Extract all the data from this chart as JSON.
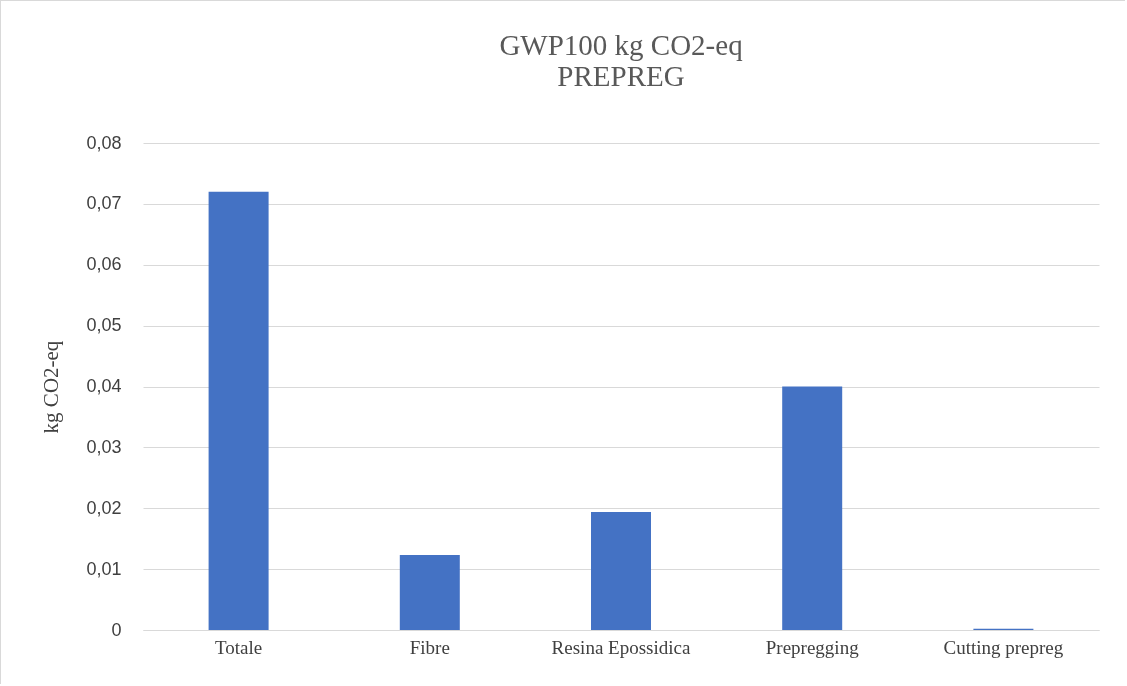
{
  "chart_data": {
    "type": "bar",
    "title": "GWP100 kg CO2-eq",
    "subtitle": "PREPREG",
    "ylabel": "kg CO2-eq",
    "categories": [
      "Totale",
      "Fibre",
      "Resina Epossidica",
      "Prepregging",
      "Cutting prepreg"
    ],
    "values": [
      0.072,
      0.0123,
      0.0194,
      0.04,
      0.0002
    ],
    "color": "#4472c4",
    "ylim": [
      0,
      0.08
    ],
    "yticks": [
      {
        "value": 0,
        "label": "0"
      },
      {
        "value": 0.01,
        "label": "0,01"
      },
      {
        "value": 0.02,
        "label": "0,02"
      },
      {
        "value": 0.03,
        "label": "0,03"
      },
      {
        "value": 0.04,
        "label": "0,04"
      },
      {
        "value": 0.05,
        "label": "0,05"
      },
      {
        "value": 0.06,
        "label": "0,06"
      },
      {
        "value": 0.07,
        "label": "0,07"
      },
      {
        "value": 0.08,
        "label": "0,08"
      }
    ],
    "grid": "y"
  }
}
